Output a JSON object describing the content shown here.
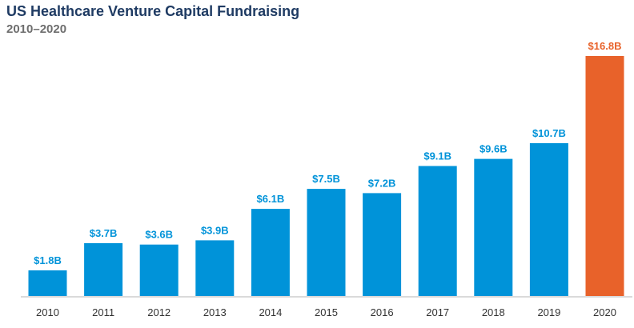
{
  "chart_data": {
    "type": "bar",
    "title": "US Healthcare Venture Capital Fundraising",
    "subtitle": "2010–2020",
    "categories": [
      "2010",
      "2011",
      "2012",
      "2013",
      "2014",
      "2015",
      "2016",
      "2017",
      "2018",
      "2019",
      "2020"
    ],
    "values": [
      1.8,
      3.7,
      3.6,
      3.9,
      6.1,
      7.5,
      7.2,
      9.1,
      9.6,
      10.7,
      16.8
    ],
    "data_labels": [
      "$1.8B",
      "$3.7B",
      "$3.6B",
      "$3.9B",
      "$6.1B",
      "$7.5B",
      "$7.2B",
      "$9.1B",
      "$9.6B",
      "$10.7B",
      "$16.8B"
    ],
    "xlabel": "",
    "ylabel": "",
    "ylim": [
      0,
      16.8
    ],
    "grid": false,
    "colors": {
      "default": "#0093d9",
      "highlight": "#e8622a",
      "highlight_category": "2020"
    }
  }
}
